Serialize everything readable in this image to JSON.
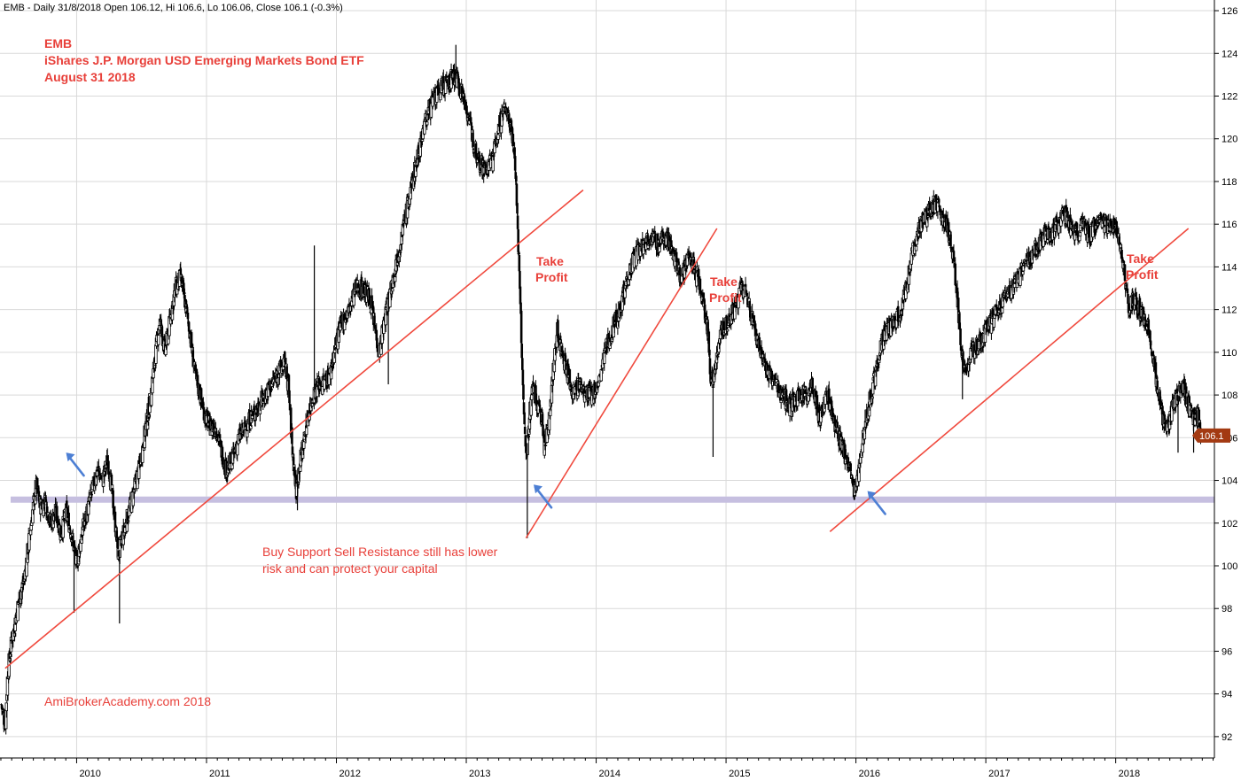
{
  "header": "EMB - Daily 31/8/2018 Open 106.12, Hi 106.6, Lo 106.06, Close 106.1 (-0.3%)",
  "annotations": {
    "title_lines": [
      "EMB",
      "iShares J.P. Morgan USD Emerging Markets Bond ETF",
      "August 31 2018"
    ],
    "watermark": "AmiBrokerAcademy.com  2018",
    "note_lines": [
      "Buy Support Sell Resistance still has lower",
      "risk and can protect your capital"
    ],
    "take_profit": [
      "Take",
      "Profit"
    ],
    "last_price": "106.1"
  },
  "colors": {
    "annotation": "#e8403a",
    "trendline": "#f04a3e",
    "support": "#c6bfe0",
    "arrow": "#4d7fd4",
    "price_tag": "#a33a12"
  },
  "chart_data": {
    "type": "ohlc",
    "x_ticks": [
      "2010",
      "2011",
      "2012",
      "2013",
      "2014",
      "2015",
      "2016",
      "2017",
      "2018"
    ],
    "y_ticks": [
      92,
      94,
      96,
      98,
      100,
      102,
      104,
      106,
      108,
      110,
      112,
      114,
      116,
      118,
      120,
      122,
      124,
      126
    ],
    "ylim": [
      91,
      126.5
    ],
    "xlim": [
      2009.41,
      2018.76
    ],
    "grid": true,
    "last_close": 106.1,
    "support_level": 103.1,
    "close_path": [
      [
        2009.42,
        93.5
      ],
      [
        2009.45,
        92.5
      ],
      [
        2009.47,
        95
      ],
      [
        2009.5,
        96.5
      ],
      [
        2009.53,
        97.5
      ],
      [
        2009.56,
        98.5
      ],
      [
        2009.6,
        99.5
      ],
      [
        2009.63,
        101
      ],
      [
        2009.66,
        102.5
      ],
      [
        2009.69,
        103.8
      ],
      [
        2009.72,
        102.8
      ],
      [
        2009.76,
        103
      ],
      [
        2009.8,
        102
      ],
      [
        2009.84,
        102.5
      ],
      [
        2009.88,
        101.5
      ],
      [
        2009.92,
        102.5
      ],
      [
        2009.96,
        101.5
      ],
      [
        2010.0,
        100
      ],
      [
        2010.04,
        101.5
      ],
      [
        2010.08,
        102.5
      ],
      [
        2010.12,
        103.5
      ],
      [
        2010.16,
        104.5
      ],
      [
        2010.2,
        104
      ],
      [
        2010.24,
        105
      ],
      [
        2010.28,
        103
      ],
      [
        2010.32,
        100.5
      ],
      [
        2010.36,
        101.5
      ],
      [
        2010.4,
        102.5
      ],
      [
        2010.44,
        103.5
      ],
      [
        2010.48,
        104.5
      ],
      [
        2010.52,
        106
      ],
      [
        2010.56,
        107.5
      ],
      [
        2010.6,
        109.5
      ],
      [
        2010.64,
        111.5
      ],
      [
        2010.68,
        110
      ],
      [
        2010.72,
        111.5
      ],
      [
        2010.76,
        113
      ],
      [
        2010.8,
        113.5
      ],
      [
        2010.83,
        112.5
      ],
      [
        2010.87,
        111
      ],
      [
        2010.91,
        109
      ],
      [
        2010.95,
        108
      ],
      [
        2010.99,
        107
      ],
      [
        2011.03,
        106.5
      ],
      [
        2011.07,
        106.5
      ],
      [
        2011.11,
        105.5
      ],
      [
        2011.15,
        104.5
      ],
      [
        2011.2,
        105
      ],
      [
        2011.25,
        106
      ],
      [
        2011.3,
        106.5
      ],
      [
        2011.35,
        107
      ],
      [
        2011.4,
        107.5
      ],
      [
        2011.45,
        108
      ],
      [
        2011.5,
        108.5
      ],
      [
        2011.55,
        109
      ],
      [
        2011.6,
        109.5
      ],
      [
        2011.63,
        108.5
      ],
      [
        2011.66,
        105.5
      ],
      [
        2011.69,
        103.5
      ],
      [
        2011.71,
        104.5
      ],
      [
        2011.74,
        105.5
      ],
      [
        2011.78,
        107
      ],
      [
        2011.82,
        108
      ],
      [
        2011.86,
        108.5
      ],
      [
        2011.9,
        108.5
      ],
      [
        2011.95,
        109
      ],
      [
        2012.0,
        110.5
      ],
      [
        2012.05,
        111.5
      ],
      [
        2012.1,
        112
      ],
      [
        2012.15,
        113
      ],
      [
        2012.2,
        113
      ],
      [
        2012.26,
        112.5
      ],
      [
        2012.3,
        111
      ],
      [
        2012.33,
        110
      ],
      [
        2012.37,
        111.5
      ],
      [
        2012.42,
        113
      ],
      [
        2012.47,
        114.5
      ],
      [
        2012.52,
        116
      ],
      [
        2012.57,
        117.5
      ],
      [
        2012.62,
        119
      ],
      [
        2012.67,
        120.5
      ],
      [
        2012.72,
        121.5
      ],
      [
        2012.77,
        122
      ],
      [
        2012.82,
        122.5
      ],
      [
        2012.86,
        122.5
      ],
      [
        2012.9,
        123
      ],
      [
        2012.95,
        122.5
      ],
      [
        2013.0,
        121.5
      ],
      [
        2013.05,
        120
      ],
      [
        2013.1,
        119
      ],
      [
        2013.15,
        118.5
      ],
      [
        2013.2,
        119
      ],
      [
        2013.25,
        120.5
      ],
      [
        2013.3,
        121.5
      ],
      [
        2013.35,
        120.5
      ],
      [
        2013.38,
        118.5
      ],
      [
        2013.4,
        115
      ],
      [
        2013.42,
        111.5
      ],
      [
        2013.44,
        107.5
      ],
      [
        2013.46,
        105
      ],
      [
        2013.48,
        106.5
      ],
      [
        2013.51,
        108.5
      ],
      [
        2013.55,
        107.5
      ],
      [
        2013.58,
        107
      ],
      [
        2013.6,
        105.5
      ],
      [
        2013.63,
        106.5
      ],
      [
        2013.66,
        108.5
      ],
      [
        2013.7,
        111
      ],
      [
        2013.74,
        110
      ],
      [
        2013.78,
        109
      ],
      [
        2013.82,
        108
      ],
      [
        2013.87,
        108.5
      ],
      [
        2013.92,
        108
      ],
      [
        2013.97,
        108
      ],
      [
        2014.02,
        108.5
      ],
      [
        2014.07,
        110
      ],
      [
        2014.12,
        111
      ],
      [
        2014.18,
        112
      ],
      [
        2014.24,
        113.5
      ],
      [
        2014.3,
        114.5
      ],
      [
        2014.36,
        115
      ],
      [
        2014.42,
        115.5
      ],
      [
        2014.48,
        115
      ],
      [
        2014.54,
        115.5
      ],
      [
        2014.6,
        114.5
      ],
      [
        2014.66,
        113.5
      ],
      [
        2014.72,
        114.5
      ],
      [
        2014.78,
        113.5
      ],
      [
        2014.82,
        112.5
      ],
      [
        2014.86,
        111
      ],
      [
        2014.88,
        109
      ],
      [
        2014.9,
        108.5
      ],
      [
        2014.93,
        110
      ],
      [
        2014.97,
        111
      ],
      [
        2015.02,
        111.5
      ],
      [
        2015.07,
        112
      ],
      [
        2015.12,
        113
      ],
      [
        2015.17,
        112.5
      ],
      [
        2015.22,
        111
      ],
      [
        2015.27,
        110
      ],
      [
        2015.32,
        109
      ],
      [
        2015.38,
        108.5
      ],
      [
        2015.44,
        108
      ],
      [
        2015.5,
        107.5
      ],
      [
        2015.56,
        108
      ],
      [
        2015.62,
        108
      ],
      [
        2015.66,
        108.5
      ],
      [
        2015.72,
        107
      ],
      [
        2015.78,
        108
      ],
      [
        2015.84,
        106.5
      ],
      [
        2015.9,
        105.5
      ],
      [
        2015.95,
        104.5
      ],
      [
        2015.99,
        103.5
      ],
      [
        2016.02,
        104.5
      ],
      [
        2016.05,
        106
      ],
      [
        2016.1,
        107.5
      ],
      [
        2016.15,
        109
      ],
      [
        2016.2,
        110.5
      ],
      [
        2016.25,
        111
      ],
      [
        2016.3,
        111.5
      ],
      [
        2016.35,
        112
      ],
      [
        2016.4,
        113.5
      ],
      [
        2016.45,
        115
      ],
      [
        2016.5,
        116
      ],
      [
        2016.55,
        116.5
      ],
      [
        2016.6,
        117
      ],
      [
        2016.65,
        116.5
      ],
      [
        2016.7,
        116
      ],
      [
        2016.75,
        114.5
      ],
      [
        2016.8,
        111
      ],
      [
        2016.83,
        109
      ],
      [
        2016.87,
        109.5
      ],
      [
        2016.9,
        110
      ],
      [
        2016.95,
        110.5
      ],
      [
        2017.0,
        111
      ],
      [
        2017.05,
        111.5
      ],
      [
        2017.1,
        112
      ],
      [
        2017.15,
        112.5
      ],
      [
        2017.2,
        113
      ],
      [
        2017.25,
        113.5
      ],
      [
        2017.3,
        114
      ],
      [
        2017.35,
        114.5
      ],
      [
        2017.4,
        115
      ],
      [
        2017.45,
        115.5
      ],
      [
        2017.5,
        115.5
      ],
      [
        2017.55,
        116
      ],
      [
        2017.6,
        116.5
      ],
      [
        2017.65,
        116
      ],
      [
        2017.7,
        115.5
      ],
      [
        2017.75,
        116
      ],
      [
        2017.8,
        115.5
      ],
      [
        2017.85,
        116
      ],
      [
        2017.9,
        116
      ],
      [
        2017.95,
        116
      ],
      [
        2018.0,
        116
      ],
      [
        2018.04,
        115
      ],
      [
        2018.07,
        113.5
      ],
      [
        2018.1,
        112
      ],
      [
        2018.14,
        112.5
      ],
      [
        2018.18,
        112
      ],
      [
        2018.22,
        111.5
      ],
      [
        2018.26,
        111
      ],
      [
        2018.29,
        109.5
      ],
      [
        2018.32,
        108.5
      ],
      [
        2018.36,
        107
      ],
      [
        2018.4,
        106.5
      ],
      [
        2018.44,
        107.5
      ],
      [
        2018.48,
        108
      ],
      [
        2018.52,
        108.5
      ],
      [
        2018.56,
        107.5
      ],
      [
        2018.6,
        107
      ],
      [
        2018.64,
        107
      ],
      [
        2018.66,
        106.1
      ]
    ],
    "spikes": [
      [
        2009.98,
        97.8
      ],
      [
        2010.33,
        97.3
      ],
      [
        2011.7,
        102.6
      ],
      [
        2011.83,
        115
      ],
      [
        2012.4,
        108.5
      ],
      [
        2012.92,
        124.4
      ],
      [
        2013.47,
        101.3
      ],
      [
        2014.9,
        105.1
      ],
      [
        2015.9,
        105.1
      ],
      [
        2016.82,
        107.8
      ],
      [
        2018.48,
        105.3
      ],
      [
        2018.6,
        105.3
      ]
    ],
    "trendlines": [
      {
        "from": [
          2009.45,
          95.2
        ],
        "to": [
          2013.9,
          117.6
        ]
      },
      {
        "from": [
          2013.46,
          101.3
        ],
        "to": [
          2014.93,
          115.8
        ]
      },
      {
        "from": [
          2015.8,
          101.6
        ],
        "to": [
          2018.56,
          115.8
        ]
      }
    ],
    "arrows": [
      [
        2009.98,
        104.6
      ],
      [
        2013.58,
        103.1
      ],
      [
        2016.15,
        102.8
      ]
    ]
  }
}
